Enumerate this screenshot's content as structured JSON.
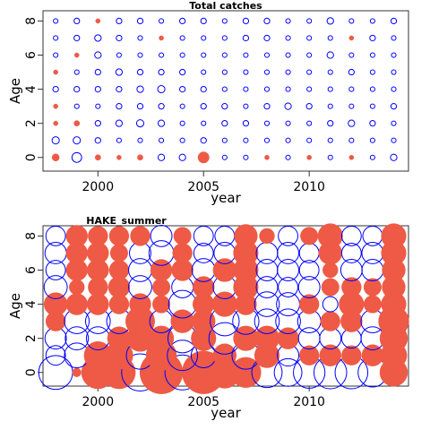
{
  "chart_data": [
    {
      "type": "scatter",
      "subtype": "bubble",
      "title": "Total catches",
      "xlabel": "year",
      "ylabel": "Age",
      "xlim": [
        1997.4,
        2014.7
      ],
      "ylim": [
        -0.8,
        8.6
      ],
      "xticks": [
        2000,
        2005,
        2010
      ],
      "yticks": [
        0,
        2,
        4,
        6,
        8
      ],
      "colors": {
        "positive": "#0000ff",
        "negative": "#ee5a45"
      },
      "years": [
        1998,
        1999,
        2000,
        2001,
        2002,
        2003,
        2004,
        2005,
        2006,
        2007,
        2008,
        2009,
        2010,
        2011,
        2012,
        2013,
        2014
      ],
      "ages": [
        0,
        1,
        2,
        3,
        4,
        5,
        6,
        7,
        8
      ],
      "residuals": [
        [
          -0.5,
          0.9,
          -0.3,
          -0.2,
          -0.3,
          0.4,
          0.4,
          -1.2,
          0.2,
          0.2,
          -0.2,
          0.2,
          -0.2,
          0.2,
          -0.2,
          0.2,
          0.4
        ],
        [
          0.5,
          0.5,
          0.3,
          0.2,
          0.2,
          0.2,
          0.2,
          0.3,
          0.2,
          0.2,
          0.2,
          0.2,
          0.2,
          0.2,
          0.2,
          0.2,
          0.2
        ],
        [
          -0.2,
          -0.3,
          0.3,
          0.4,
          0.5,
          0.4,
          0.2,
          0.2,
          0.3,
          0.3,
          0.2,
          0.2,
          0.2,
          0.3,
          0.4,
          0.3,
          0.2
        ],
        [
          -0.2,
          0.2,
          0.2,
          0.3,
          0.3,
          0.3,
          0.2,
          0.3,
          0.3,
          0.2,
          0.3,
          0.4,
          0.3,
          0.2,
          0.2,
          0.2,
          0.3
        ],
        [
          0.3,
          0.3,
          0.3,
          0.3,
          0.4,
          0.5,
          0.3,
          0.3,
          0.2,
          0.2,
          0.2,
          0.2,
          0.2,
          0.2,
          0.2,
          0.2,
          0.2
        ],
        [
          -0.2,
          0.2,
          0.3,
          0.4,
          0.3,
          0.3,
          0.3,
          0.2,
          0.2,
          0.2,
          0.2,
          0.2,
          0.2,
          0.2,
          0.3,
          0.2,
          0.2
        ],
        [
          0.2,
          -0.2,
          0.4,
          0.2,
          0.2,
          0.2,
          0.2,
          0.2,
          0.2,
          0.2,
          0.2,
          0.2,
          0.2,
          0.4,
          0.2,
          0.2,
          0.2
        ],
        [
          0.2,
          0.3,
          0.4,
          0.3,
          0.2,
          -0.2,
          0.2,
          0.2,
          0.2,
          0.3,
          0.3,
          0.2,
          0.2,
          0.2,
          -0.2,
          0.3,
          0.2
        ],
        [
          0.2,
          0.3,
          -0.2,
          0.3,
          0.3,
          0.2,
          0.3,
          0.3,
          0.2,
          0.3,
          0.3,
          0.2,
          0.2,
          0.4,
          0.2,
          0.2,
          0.3
        ]
      ]
    },
    {
      "type": "scatter",
      "subtype": "bubble",
      "title": "HAKE_summer",
      "xlabel": "year",
      "ylabel": "Age",
      "xlim": [
        1997.4,
        2014.7
      ],
      "ylim": [
        -0.8,
        8.6
      ],
      "xticks": [
        2000,
        2005,
        2010
      ],
      "yticks": [
        0,
        2,
        4,
        6,
        8
      ],
      "colors": {
        "positive": "#0000ff",
        "negative": "#ee5a45"
      },
      "years": [
        1998,
        1999,
        2000,
        2001,
        2002,
        2003,
        2004,
        2005,
        2006,
        2007,
        2008,
        2009,
        2010,
        2011,
        2012,
        2013,
        2014
      ],
      "ages": [
        0,
        1,
        2,
        3,
        4,
        5,
        6,
        7,
        8
      ],
      "residuals": [
        [
          3.0,
          -0.2,
          -2.8,
          -2.8,
          3.6,
          -4.8,
          3.2,
          -4.8,
          -2.6,
          -2.4,
          2.4,
          2.0,
          2.6,
          2.8,
          2.8,
          2.2,
          -2.0
        ],
        [
          1.0,
          1.6,
          -2.0,
          -2.0,
          2.0,
          -2.4,
          2.4,
          1.6,
          -1.4,
          2.0,
          -1.6,
          1.2,
          -1.0,
          -1.2,
          -1.0,
          -1.2,
          -1.8
        ],
        [
          1.2,
          1.4,
          1.4,
          -1.4,
          -1.8,
          -1.6,
          2.2,
          -1.6,
          2.6,
          -1.6,
          -1.6,
          -1.2,
          1.2,
          1.2,
          1.0,
          1.4,
          -2.0
        ],
        [
          -1.0,
          1.6,
          1.6,
          1.6,
          -2.2,
          1.4,
          -1.4,
          -1.4,
          2.2,
          1.8,
          1.6,
          1.6,
          1.4,
          -1.0,
          -1.2,
          1.4,
          -2.4
        ],
        [
          -1.4,
          -1.2,
          -1.2,
          -1.0,
          -1.2,
          -0.8,
          2.0,
          -1.2,
          -1.6,
          -1.2,
          1.6,
          1.4,
          -1.0,
          0.6,
          -1.6,
          -0.8,
          -1.6
        ],
        [
          1.4,
          -0.6,
          -1.0,
          -1.2,
          1.4,
          -0.8,
          1.2,
          -1.2,
          1.4,
          -1.6,
          1.2,
          1.0,
          1.2,
          -0.8,
          -1.0,
          -0.8,
          -1.4
        ],
        [
          1.0,
          -1.2,
          -1.2,
          -1.0,
          1.4,
          -1.2,
          -1.2,
          1.4,
          -1.4,
          -1.6,
          1.2,
          1.2,
          1.0,
          -0.6,
          1.2,
          1.2,
          -1.4
        ],
        [
          1.2,
          -1.2,
          -1.2,
          -0.8,
          1.2,
          1.6,
          -1.0,
          1.0,
          1.2,
          -1.6,
          1.2,
          1.2,
          1.0,
          -1.4,
          1.0,
          1.2,
          -1.6
        ],
        [
          1.0,
          -1.2,
          -1.0,
          -1.0,
          -1.0,
          1.2,
          -0.8,
          1.0,
          1.0,
          -1.4,
          -0.6,
          1.0,
          -0.8,
          -1.6,
          1.0,
          1.0,
          -1.6
        ]
      ]
    }
  ]
}
